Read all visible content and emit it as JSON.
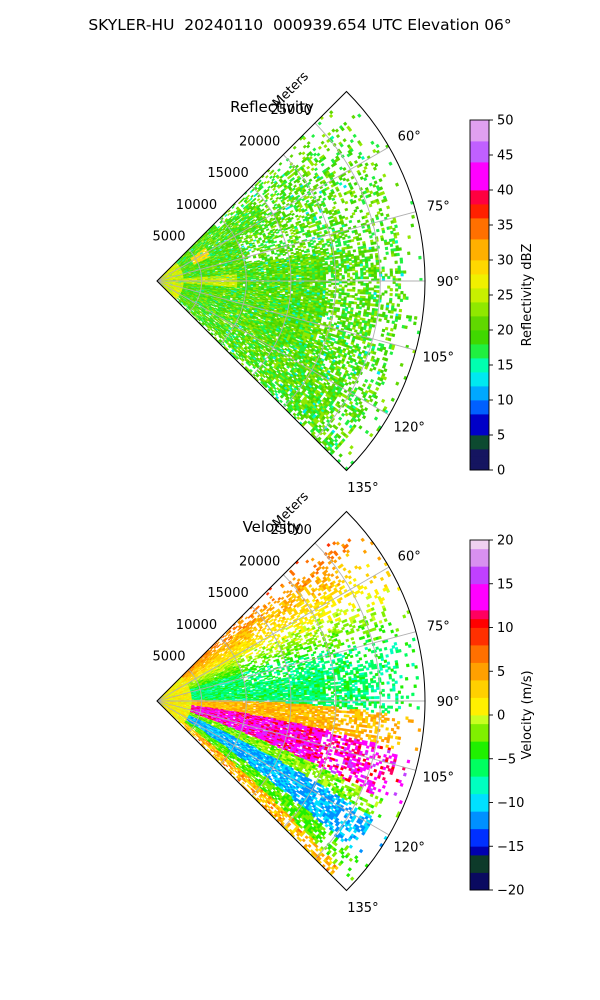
{
  "suptitle": "SKYLER-HU  20240110  000939.654 UTC Elevation 06°",
  "chart_data": [
    {
      "type": "heatmap",
      "title": "Reflectivity",
      "projection": "polar sector",
      "radial_label": "Meters",
      "r_ticks": [
        5000,
        10000,
        15000,
        20000,
        25000
      ],
      "r_tick_labels": [
        "5000",
        "10000",
        "15000",
        "20000",
        "25000"
      ],
      "r_max": 30000,
      "theta_ticks": [
        60,
        75,
        90,
        105,
        120,
        135
      ],
      "theta_tick_labels": [
        "60°",
        "75°",
        "90°",
        "105°",
        "120°",
        "135°"
      ],
      "theta_range": [
        45,
        135
      ],
      "grid": true,
      "colorbar": {
        "label": "Reflectivity dBZ",
        "range": [
          0,
          50
        ],
        "ticks": [
          0,
          5,
          10,
          15,
          20,
          25,
          30,
          35,
          40,
          45,
          50
        ],
        "tick_labels": [
          "0",
          "5",
          "10",
          "15",
          "20",
          "25",
          "30",
          "35",
          "40",
          "45",
          "50"
        ]
      },
      "field_description": "Dominant values 15-25 dBZ (green/yellow-green), isolated 25-30 dBZ near radar"
    },
    {
      "type": "heatmap",
      "title": "Velocity",
      "projection": "polar sector",
      "radial_label": "Meters",
      "r_ticks": [
        5000,
        10000,
        15000,
        20000,
        25000
      ],
      "r_tick_labels": [
        "5000",
        "10000",
        "15000",
        "20000",
        "25000"
      ],
      "r_max": 30000,
      "theta_ticks": [
        60,
        75,
        90,
        105,
        120,
        135
      ],
      "theta_tick_labels": [
        "60°",
        "75°",
        "90°",
        "105°",
        "120°",
        "135°"
      ],
      "theta_range": [
        45,
        135
      ],
      "grid": true,
      "colorbar": {
        "label": "Velocity (m/s)",
        "range": [
          -20,
          20
        ],
        "ticks": [
          -20,
          -15,
          -10,
          -5,
          0,
          5,
          10,
          15,
          20
        ],
        "tick_labels": [
          "−20",
          "−15",
          "−10",
          "−5",
          "0",
          "5",
          "10",
          "15",
          "20"
        ]
      },
      "field_description": "Folded velocity bands: +10 to +20 m/s near 95-110°, -10 to -15 m/s band near 110-125°, 0 to +5 near 120-135°"
    }
  ],
  "colors": {
    "reflectivity_scale": [
      "#1a1a6e",
      "#154a3a",
      "#0b5e3c",
      "#0000a0",
      "#0000ff",
      "#0050ff",
      "#00a0ff",
      "#00e0ff",
      "#00ffc0",
      "#00ff60",
      "#30e000",
      "#50d000",
      "#80e000",
      "#c8f000",
      "#ffff00",
      "#ffd000",
      "#ffa000",
      "#ff7000",
      "#ff3000",
      "#ff0000",
      "#e00060",
      "#ff00ff",
      "#d040ff",
      "#c070ff",
      "#e090f0",
      "#f0c0f0",
      "#fff0ff"
    ],
    "velocity_scale": [
      "#0a0a60",
      "#0d3a2a",
      "#124a3a",
      "#0000b0",
      "#0030ff",
      "#0080ff",
      "#00d0ff",
      "#00ffe0",
      "#00ff80",
      "#00ff00",
      "#40e000",
      "#80f000",
      "#c0ff20",
      "#fff000",
      "#ffd000",
      "#ffa000",
      "#ff6000",
      "#ff2000",
      "#ff0000",
      "#ff0080",
      "#ff00ff",
      "#c040ff",
      "#d080f0",
      "#e8b0f0",
      "#f8e0f8"
    ]
  }
}
